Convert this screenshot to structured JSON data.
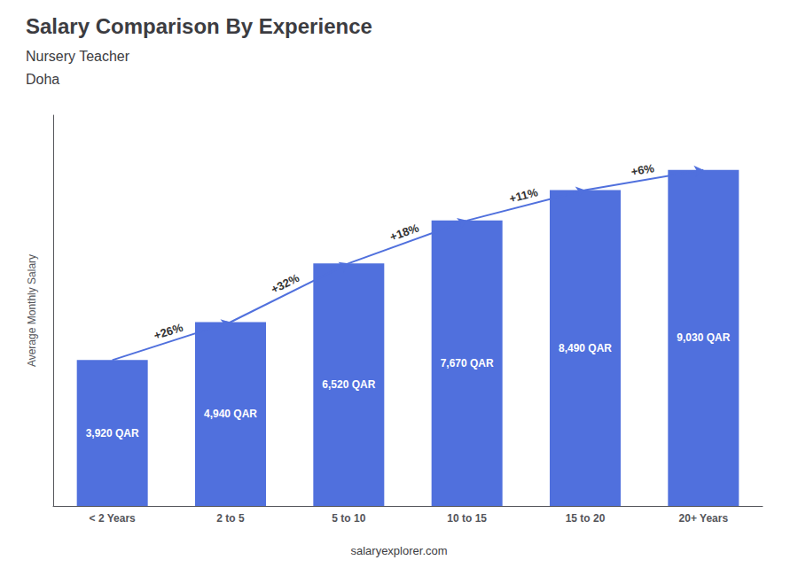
{
  "chart_data": {
    "type": "bar",
    "title": "Salary Comparison By Experience",
    "subtitle": "Nursery Teacher",
    "annotations": [
      "Doha",
      "salaryexplorer.com"
    ],
    "ylabel": "Average Monthly Salary",
    "categories": [
      "< 2 Years",
      "2 to 5",
      "5 to 10",
      "10 to 15",
      "15 to 20",
      "20+ Years"
    ],
    "values": [
      3920,
      4940,
      6520,
      7670,
      8490,
      9030
    ],
    "value_labels": [
      "3,920 QAR",
      "4,940 QAR",
      "6,520 QAR",
      "7,670 QAR",
      "8,490 QAR",
      "9,030 QAR"
    ],
    "data_labels": true,
    "pct_changes": [
      null,
      "+26%",
      "+32%",
      "+18%",
      "+11%",
      "+6%"
    ],
    "ylim": [
      0,
      10500
    ],
    "tick_labels": "x",
    "grid": false
  }
}
